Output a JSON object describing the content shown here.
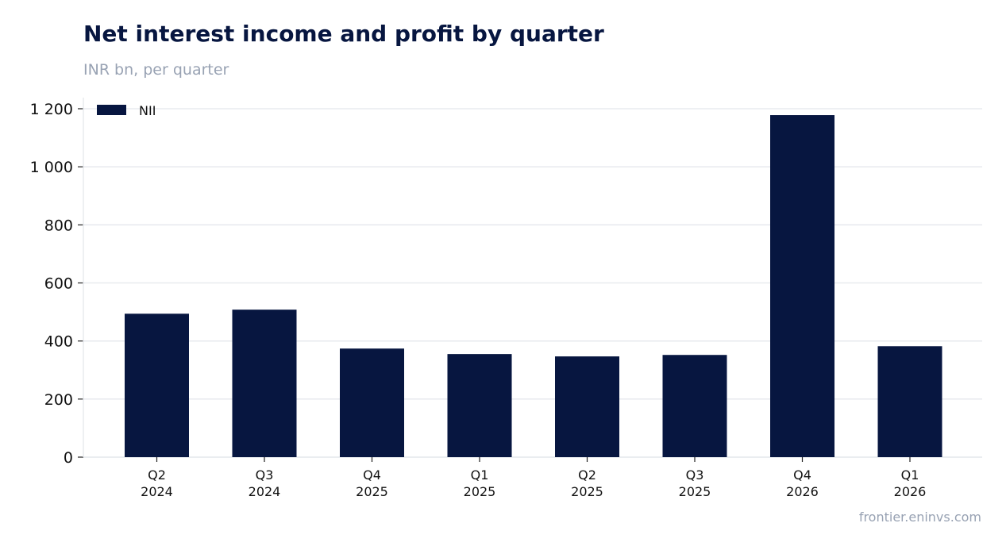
{
  "chart_data": {
    "type": "bar",
    "title": "Net interest income and profit by quarter",
    "subtitle": "INR bn, per quarter",
    "source": "frontier.eninvs.com",
    "categories": [
      [
        "Q2",
        "2024"
      ],
      [
        "Q3",
        "2024"
      ],
      [
        "Q4",
        "2025"
      ],
      [
        "Q1",
        "2025"
      ],
      [
        "Q2",
        "2025"
      ],
      [
        "Q3",
        "2025"
      ],
      [
        "Q4",
        "2026"
      ],
      [
        "Q1",
        "2026"
      ]
    ],
    "series": [
      {
        "name": "NII",
        "color": "#071640",
        "values": [
          494,
          508,
          374,
          355,
          347,
          352,
          1178,
          382
        ]
      }
    ],
    "ylim": [
      0,
      1200
    ],
    "yticks": [
      0,
      200,
      400,
      600,
      800,
      1000,
      1200
    ],
    "ytick_labels": [
      "0",
      "200",
      "400",
      "600",
      "800",
      "1 000",
      "1 200"
    ],
    "grid": true,
    "legend": "top-left"
  }
}
